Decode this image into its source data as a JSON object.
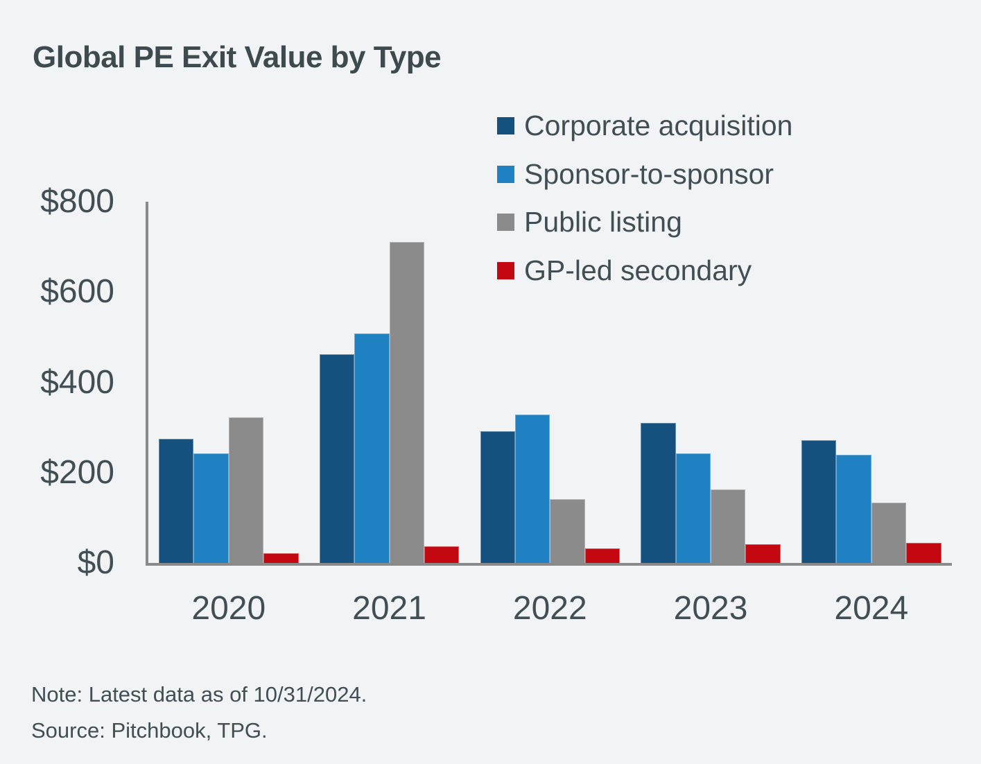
{
  "title": "Global PE Exit Value by Type",
  "colors": {
    "background": "#F2F3F4",
    "axis": "#8A8A8A",
    "title_text": "#3D4A4E",
    "body_text": "#414E54"
  },
  "chart_data": {
    "type": "bar",
    "title": "Global PE Exit Value by Type",
    "categories": [
      "2020",
      "2021",
      "2022",
      "2023",
      "2024"
    ],
    "series": [
      {
        "name": "Corporate acquisition",
        "color": "#15517F",
        "values": [
          275,
          462,
          291,
          310,
          272
        ]
      },
      {
        "name": "Sponsor-to-sponsor",
        "color": "#2081C3",
        "values": [
          243,
          508,
          328,
          243,
          239
        ]
      },
      {
        "name": "Public listing",
        "color": "#8B8B8B",
        "values": [
          323,
          711,
          142,
          163,
          133
        ]
      },
      {
        "name": "GP-led secondary",
        "color": "#C40811",
        "values": [
          21,
          37,
          32,
          42,
          44
        ]
      }
    ],
    "xlabel": "",
    "ylabel": "",
    "ylim": [
      0,
      800
    ],
    "yticks": [
      {
        "value": 0,
        "label": "$0"
      },
      {
        "value": 200,
        "label": "$200"
      },
      {
        "value": 400,
        "label": "$400"
      },
      {
        "value": 600,
        "label": "$600"
      },
      {
        "value": 800,
        "label": "$800"
      }
    ],
    "legend_position": "top-right",
    "grid": false
  },
  "footnote": {
    "note": "Note: Latest data as of 10/31/2024.",
    "source": "Source: Pitchbook, TPG."
  }
}
